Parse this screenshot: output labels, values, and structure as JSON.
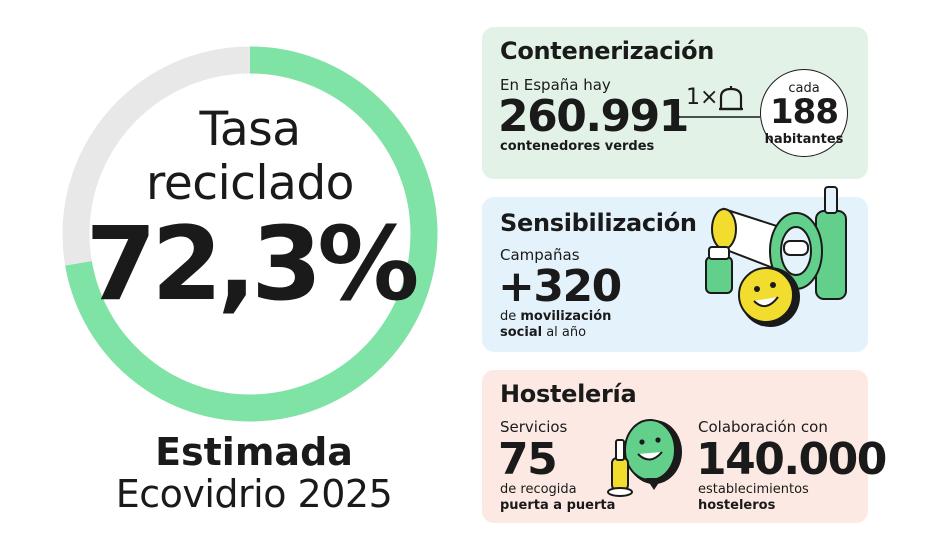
{
  "chart_data": {
    "type": "pie",
    "categories": [
      "Tasa reciclado",
      "Resto"
    ],
    "values": [
      72.3,
      27.7
    ],
    "ylim": [
      0,
      100
    ]
  },
  "donut": {
    "title_line1": "Tasa",
    "title_line2": "reciclado",
    "value": "72,3%",
    "estimate_line1": "Estimada",
    "estimate_line2": "Ecovidrio 2025"
  },
  "colors": {
    "donut_fill": "#7ee3a5",
    "donut_track": "#e8e8e8",
    "card_contenerizacion": "#e3f2e6",
    "card_sensibilizacion": "#e4f3fb",
    "card_hosteleria": "#fde9e3",
    "accent_green": "#62d08a",
    "accent_yellow": "#f2dd2e"
  },
  "cards": {
    "contenerizacion": {
      "title": "Contenerización",
      "intro": "En España hay",
      "value": "260.991",
      "caption": "contenedores verdes",
      "ratio_prefix": "1×",
      "ratio_icon": "container-icon",
      "circle_top": "cada",
      "circle_value": "188",
      "circle_bottom": "habitantes"
    },
    "sensibilizacion": {
      "title": "Sensibilización",
      "intro": "Campañas",
      "value": "+320",
      "caption_prefix": "de ",
      "caption_bold1": "movilización",
      "caption_bold2": "social",
      "caption_suffix": " al año",
      "illustration": "megaphone-and-bottles-icon"
    },
    "hosteleria": {
      "title": "Hostelería",
      "left_intro": "Servicios",
      "left_value": "75",
      "left_caption": "de recogida",
      "left_caption_bold": "puerta a puerta",
      "right_intro": "Colaboración con",
      "right_value": "140.000",
      "right_caption": "establecimientos",
      "right_caption_bold": "hosteleros",
      "illustration": "bottle-and-smiley-icon"
    }
  }
}
